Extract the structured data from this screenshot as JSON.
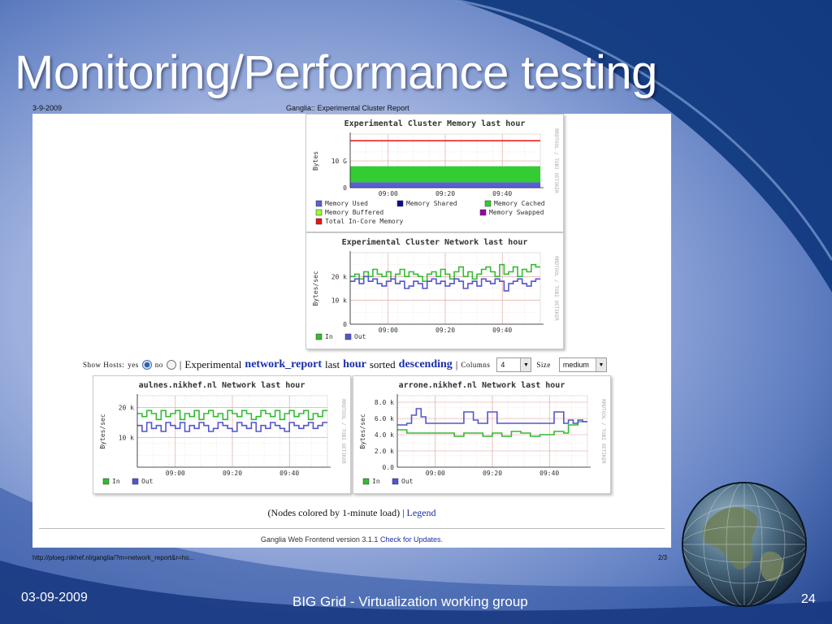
{
  "slide": {
    "title": "Monitoring/Performance testing",
    "date": "03-09-2009",
    "footer_center": "BIG Grid - Virtualization working group",
    "slide_number": "24"
  },
  "browser_print": {
    "date": "3-9-2009",
    "page_title": "Ganglia:: Experimental Cluster Report",
    "url": "http://ploeg.nikhef.nl/ganglia/?m=network_report&r=ho...",
    "page": "2/3"
  },
  "controls": {
    "show_hosts": "Show Hosts:",
    "yes": "yes",
    "no": "no",
    "sep": "|",
    "cluster": "Experimental",
    "metric": "network_report",
    "last": "last",
    "range": "hour",
    "sorted": "sorted",
    "sort": "descending",
    "columns_label": "Columns",
    "columns_value": "4",
    "size_label": "Size",
    "size_value": "medium"
  },
  "nodes_note": {
    "text": "(Nodes colored by 1-minute load) |",
    "legend_link": "Legend"
  },
  "footer": {
    "text": "Ganglia Web Frontend version 3.1.1",
    "link": "Check for Updates."
  },
  "colors": {
    "memory_used": "#5a5ed6",
    "memory_shared": "#0a0a9a",
    "memory_cached": "#33cc33",
    "memory_buffered": "#99ff33",
    "memory_swapped": "#9900aa",
    "total_incore": "#ee1111",
    "net_in": "#33bb33",
    "net_out": "#5555cc"
  },
  "chart_data": [
    {
      "type": "area",
      "title": "Experimental Cluster Memory last hour",
      "ylabel": "Bytes",
      "side_label": "RRDTOOL / TOBI OETIKER",
      "y_ticks": [
        "0",
        "10 G"
      ],
      "x_ticks": [
        "09:00",
        "09:20",
        "09:40"
      ],
      "legend": [
        "Memory Used",
        "Memory Shared",
        "Memory Cached",
        "Memory Buffered",
        "Memory Swapped",
        "Total In-Core Memory"
      ],
      "series": [
        {
          "name": "Memory Used",
          "value_g": 2
        },
        {
          "name": "Memory Cached",
          "value_g": 6
        },
        {
          "name": "Total In-Core Memory",
          "value_g": 17.5
        }
      ],
      "ymax_g": 20
    },
    {
      "type": "line",
      "title": "Experimental Cluster Network last hour",
      "ylabel": "Bytes/sec",
      "side_label": "RRDTOOL / TOBI OETIKER",
      "y_ticks": [
        "0",
        "10 k",
        "20 k"
      ],
      "x_ticks": [
        "09:00",
        "09:20",
        "09:40"
      ],
      "legend": [
        "In",
        "Out"
      ],
      "ymax": 30,
      "series": [
        {
          "name": "In",
          "values": [
            20,
            21,
            19,
            22,
            20,
            23,
            21,
            20,
            22,
            19,
            21,
            23,
            20,
            22,
            21,
            20,
            18,
            21,
            22,
            20,
            23,
            21,
            19,
            22,
            24,
            20,
            22,
            19,
            21,
            23,
            24,
            22,
            20,
            25,
            21,
            22,
            24,
            20,
            23,
            22,
            25,
            24
          ]
        },
        {
          "name": "Out",
          "values": [
            18,
            19,
            17,
            20,
            18,
            19,
            17,
            16,
            18,
            19,
            17,
            18,
            15,
            16,
            18,
            17,
            15,
            18,
            19,
            17,
            18,
            16,
            17,
            19,
            18,
            15,
            17,
            18,
            16,
            19,
            18,
            17,
            19,
            18,
            14,
            17,
            18,
            19,
            17,
            16,
            18,
            19
          ]
        }
      ]
    },
    {
      "type": "line",
      "title": "aulnes.nikhef.nl Network last hour",
      "ylabel": "Bytes/sec",
      "side_label": "RRDTOOL / TOBI OETIKER",
      "y_ticks": [
        "10 k",
        "20 k"
      ],
      "x_ticks": [
        "09:00",
        "09:20",
        "09:40"
      ],
      "legend": [
        "In",
        "Out"
      ],
      "ymax": 24,
      "series": [
        {
          "name": "In",
          "values": [
            18,
            17,
            19,
            18,
            16,
            19,
            17,
            18,
            19,
            16,
            18,
            17,
            19,
            16,
            18,
            19,
            17,
            18,
            16,
            19,
            18,
            17,
            19,
            18,
            16,
            17,
            19,
            18,
            17,
            19,
            16,
            18,
            19,
            17,
            18,
            19,
            16,
            18,
            17,
            19
          ]
        },
        {
          "name": "Out",
          "values": [
            14,
            12,
            15,
            13,
            14,
            12,
            15,
            14,
            13,
            15,
            12,
            14,
            13,
            15,
            14,
            12,
            13,
            15,
            14,
            13,
            12,
            15,
            14,
            13,
            15,
            12,
            14,
            13,
            15,
            14,
            13,
            12,
            15,
            14,
            13,
            14,
            15,
            13,
            14,
            15
          ]
        }
      ]
    },
    {
      "type": "line",
      "title": "arrone.nikhef.nl Network last hour",
      "ylabel": "Bytes/sec",
      "side_label": "RRDTOOL / TOBI OETIKER",
      "y_ticks": [
        "0.0",
        "2.0 k",
        "4.0 k",
        "6.0 k",
        "8.0 k"
      ],
      "x_ticks": [
        "09:00",
        "09:20",
        "09:40"
      ],
      "legend": [
        "In",
        "Out"
      ],
      "ymax": 8.8,
      "series": [
        {
          "name": "In",
          "values": [
            4.6,
            4.6,
            4.2,
            4.2,
            4.2,
            4.2,
            4.2,
            4.2,
            4.2,
            4.2,
            4.2,
            4.2,
            3.8,
            3.8,
            4.2,
            4.2,
            4.2,
            4.2,
            3.8,
            3.8,
            4.2,
            4.2,
            3.8,
            3.8,
            4.4,
            4.4,
            4.2,
            4.2,
            3.8,
            3.8,
            4.0,
            4.0,
            4.0,
            4.4,
            4.4,
            4.2,
            5.2,
            5.2,
            5.6,
            5.6
          ]
        },
        {
          "name": "Out",
          "values": [
            5.2,
            5.2,
            5.4,
            6.4,
            7.2,
            6.2,
            5.4,
            5.4,
            5.4,
            5.4,
            5.4,
            5.4,
            5.4,
            5.4,
            6.8,
            6.8,
            5.8,
            5.4,
            5.4,
            6.8,
            6.8,
            5.4,
            5.4,
            5.4,
            5.4,
            5.4,
            5.4,
            5.4,
            5.4,
            5.4,
            5.4,
            5.4,
            5.4,
            6.8,
            6.8,
            5.4,
            5.8,
            5.4,
            5.8,
            5.6
          ]
        }
      ]
    }
  ]
}
